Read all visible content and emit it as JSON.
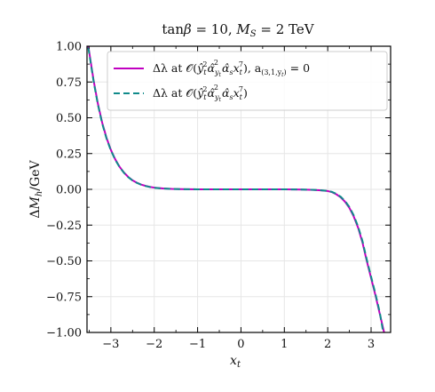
{
  "chart_data": {
    "type": "line",
    "title": "tan β = 10,  M_S = 2 TeV",
    "xlabel": "x_t",
    "ylabel": "ΔM_h/GeV",
    "xlim": [
      -3.55,
      3.45
    ],
    "ylim": [
      -1.0,
      1.0
    ],
    "grid": true,
    "legend_position": "top-right",
    "x_ticks": [
      -3,
      -2,
      -1,
      0,
      1,
      2,
      3
    ],
    "x_tick_labels": [
      "−3",
      "−2",
      "−1",
      "0",
      "1",
      "2",
      "3"
    ],
    "y_ticks": [
      -1.0,
      -0.75,
      -0.5,
      -0.25,
      0.0,
      0.25,
      0.5,
      0.75,
      1.0
    ],
    "y_tick_labels": [
      "−1.00",
      "−0.75",
      "−0.50",
      "−0.25",
      "0.00",
      "0.25",
      "0.50",
      "0.75",
      "1.00"
    ],
    "series": [
      {
        "name": "Δλ at O(ŷ_t^2 α̂_{y_t}^2 α̂_s x_t^7), a_(3,1,y_t) = 0",
        "color": "#c000c0",
        "style": "solid",
        "x": [
          -3.52,
          -3.4,
          -3.3,
          -3.2,
          -3.1,
          -3.0,
          -2.9,
          -2.8,
          -2.7,
          -2.6,
          -2.5,
          -2.4,
          -2.3,
          -2.2,
          -2.1,
          -2.0,
          -1.8,
          -1.6,
          -1.4,
          -1.2,
          -1.0,
          -0.5,
          0.0,
          0.5,
          1.0,
          1.2,
          1.4,
          1.6,
          1.8,
          2.0,
          2.1,
          2.2,
          2.3,
          2.4,
          2.5,
          2.6,
          2.7,
          2.8,
          2.9,
          3.0,
          3.1,
          3.2,
          3.3
        ],
        "y": [
          1.0,
          0.765,
          0.6,
          0.466,
          0.36,
          0.276,
          0.21,
          0.158,
          0.118,
          0.087,
          0.063,
          0.046,
          0.033,
          0.024,
          0.017,
          0.012,
          0.006,
          0.003,
          0.0015,
          0.0007,
          0.0003,
          0.0,
          0.0,
          0.0,
          -0.0003,
          -0.0007,
          -0.0015,
          -0.003,
          -0.006,
          -0.012,
          -0.02,
          -0.035,
          -0.056,
          -0.087,
          -0.13,
          -0.19,
          -0.268,
          -0.37,
          -0.5,
          -0.62,
          -0.74,
          -0.87,
          -1.0
        ]
      },
      {
        "name": "Δλ at O(ŷ_t^2 α̂_{y_t}^2 α̂_s x_t^7)",
        "color": "#108a8a",
        "style": "dashed",
        "x": [
          -3.52,
          -3.4,
          -3.3,
          -3.2,
          -3.1,
          -3.0,
          -2.9,
          -2.8,
          -2.7,
          -2.6,
          -2.5,
          -2.4,
          -2.3,
          -2.2,
          -2.1,
          -2.0,
          -1.8,
          -1.6,
          -1.4,
          -1.2,
          -1.0,
          -0.5,
          0.0,
          0.5,
          1.0,
          1.2,
          1.4,
          1.6,
          1.8,
          2.0,
          2.1,
          2.2,
          2.3,
          2.4,
          2.5,
          2.6,
          2.7,
          2.8,
          2.9,
          3.0,
          3.1,
          3.2,
          3.28
        ],
        "y": [
          0.99,
          0.758,
          0.594,
          0.46,
          0.355,
          0.272,
          0.207,
          0.156,
          0.116,
          0.085,
          0.062,
          0.045,
          0.032,
          0.023,
          0.016,
          0.011,
          0.0055,
          0.0027,
          0.0013,
          0.0006,
          0.0002,
          0.0,
          0.0,
          0.0,
          -0.0002,
          -0.0006,
          -0.0013,
          -0.0027,
          -0.0055,
          -0.011,
          -0.018,
          -0.032,
          -0.052,
          -0.082,
          -0.124,
          -0.182,
          -0.26,
          -0.36,
          -0.49,
          -0.61,
          -0.73,
          -0.86,
          -1.0
        ]
      }
    ]
  },
  "legend": {
    "entry1": {
      "prefix": "Δλ at 𝒪(",
      "y": "ŷ",
      "y_sub": "t",
      "y_sup": "2",
      "a": "α̂",
      "a_sub": "y",
      "a_subsub": "t",
      "a_sup": "2",
      "s": "α̂",
      "s_sub": "s",
      "x": "x",
      "x_sub": "t",
      "x_sup": "7",
      "close": "), a",
      "coef_sub": "(3,1,y",
      "coef_subsub": "t",
      "coef_close": ")",
      "eq": " = 0"
    },
    "entry2": {
      "prefix": "Δλ at 𝒪(",
      "y": "ŷ",
      "y_sub": "t",
      "y_sup": "2",
      "a": "α̂",
      "a_sub": "y",
      "a_subsub": "t",
      "a_sup": "2",
      "s": "α̂",
      "s_sub": "s",
      "x": "x",
      "x_sub": "t",
      "x_sup": "7",
      "close": ")"
    }
  },
  "title_parts": {
    "tan": "tan",
    "beta": "β",
    "eq": " = 10,  ",
    "M": "M",
    "M_sub": "S",
    "rest": " = 2 TeV"
  },
  "ylabel_parts": {
    "delta": "Δ",
    "M": "M",
    "M_sub": "h",
    "unit": "/GeV"
  },
  "xlabel_parts": {
    "x": "x",
    "x_sub": "t"
  }
}
